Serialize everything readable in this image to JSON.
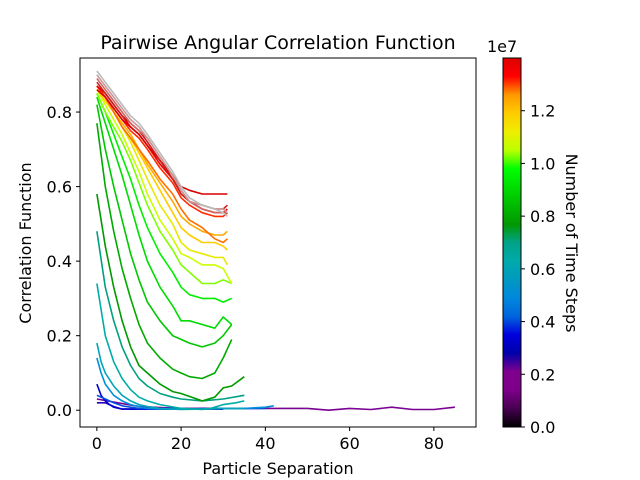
{
  "chart_data": {
    "type": "line",
    "title": "Pairwise Angular Correlation Function",
    "xlabel": "Particle Separation",
    "ylabel": "Correlation Function",
    "xlim": [
      -4,
      90
    ],
    "ylim": [
      -0.045,
      0.945
    ],
    "x_ticks": [
      "0",
      "20",
      "40",
      "60",
      "80"
    ],
    "x_tick_values": [
      0,
      20,
      40,
      60,
      80
    ],
    "y_ticks": [
      "0.0",
      "0.2",
      "0.4",
      "0.6",
      "0.8"
    ],
    "y_tick_values": [
      0.0,
      0.2,
      0.4,
      0.6,
      0.8
    ],
    "grid": false,
    "legend": "none",
    "colorbar": {
      "label": "Number of Time Steps",
      "offset_text": "1e7",
      "min": 0,
      "max": 1.4,
      "ticks": [
        "0.0",
        "0.2",
        "0.4",
        "0.6",
        "0.8",
        "1.0",
        "1.2"
      ],
      "tick_values": [
        0.0,
        0.2,
        0.4,
        0.6,
        0.8,
        1.0,
        1.2
      ],
      "colormap": "nipy_spectral",
      "colormap_stops": [
        [
          "0.00",
          "#000000"
        ],
        [
          "0.05",
          "#470051"
        ],
        [
          "0.10",
          "#7e0089"
        ],
        [
          "0.15",
          "#7f008f"
        ],
        [
          "0.20",
          "#0000a9"
        ],
        [
          "0.25",
          "#0000dd"
        ],
        [
          "0.30",
          "#0066dd"
        ],
        [
          "0.35",
          "#0088dd"
        ],
        [
          "0.40",
          "#0099c0"
        ],
        [
          "0.45",
          "#00aaaa"
        ],
        [
          "0.50",
          "#00a288"
        ],
        [
          "0.55",
          "#009900"
        ],
        [
          "0.60",
          "#00bb00"
        ],
        [
          "0.65",
          "#00dd00"
        ],
        [
          "0.70",
          "#00ff00"
        ],
        [
          "0.75",
          "#bbff00"
        ],
        [
          "0.80",
          "#eeee00"
        ],
        [
          "0.85",
          "#ffcc00"
        ],
        [
          "0.90",
          "#ff9900"
        ],
        [
          "0.95",
          "#ff0000"
        ],
        [
          "1.00",
          "#dd0000"
        ]
      ]
    },
    "series": [
      {
        "color": "#7a0094",
        "x": [
          0,
          5,
          10,
          20,
          30,
          40,
          50,
          55,
          60,
          65,
          70,
          75,
          80,
          85
        ],
        "values": [
          0.03,
          0.02,
          0.01,
          0.005,
          0.005,
          0.005,
          0.005,
          0.0,
          0.005,
          0.002,
          0.008,
          0.002,
          0.002,
          0.008
        ]
      },
      {
        "color": "#2a00b8",
        "x": [
          0,
          2,
          4,
          6,
          8,
          10,
          15,
          20,
          25,
          30
        ],
        "values": [
          0.02,
          0.02,
          0.01,
          0.003,
          0.003,
          0.003,
          0.003,
          0.003,
          0.005,
          0.003
        ]
      },
      {
        "color": "#0000cc",
        "x": [
          0,
          1,
          2,
          3,
          4,
          6,
          8,
          10,
          15,
          20,
          25,
          30
        ],
        "values": [
          0.07,
          0.04,
          0.025,
          0.015,
          0.008,
          0.003,
          0.003,
          0.003,
          0.003,
          0.003,
          0.003,
          0.003
        ]
      },
      {
        "color": "#0050dd",
        "x": [
          0,
          2,
          4,
          6,
          8,
          10,
          12,
          15,
          20,
          25,
          30,
          35,
          40
        ],
        "values": [
          0.04,
          0.03,
          0.02,
          0.012,
          0.008,
          0.005,
          0.005,
          0.005,
          0.005,
          0.003,
          0.005,
          0.005,
          0.005
        ]
      },
      {
        "color": "#0090dc",
        "x": [
          0,
          1,
          2,
          4,
          6,
          8,
          10,
          12,
          15,
          20,
          25,
          30,
          35,
          40,
          42
        ],
        "values": [
          0.14,
          0.1,
          0.07,
          0.04,
          0.025,
          0.015,
          0.01,
          0.005,
          0.003,
          0.003,
          0.003,
          0.005,
          0.005,
          0.008,
          0.012
        ]
      },
      {
        "color": "#00a6b8",
        "x": [
          0,
          1,
          2,
          4,
          6,
          8,
          10,
          12,
          15,
          20,
          25,
          30,
          35
        ],
        "values": [
          0.18,
          0.13,
          0.1,
          0.065,
          0.04,
          0.025,
          0.015,
          0.01,
          0.005,
          0.002,
          0.003,
          0.005,
          0.005
        ]
      },
      {
        "color": "#00aca6",
        "x": [
          0,
          2,
          4,
          6,
          8,
          10,
          12,
          15,
          20,
          25,
          27,
          30,
          33,
          35
        ],
        "values": [
          0.34,
          0.2,
          0.13,
          0.085,
          0.055,
          0.035,
          0.025,
          0.015,
          0.005,
          0.002,
          0.005,
          0.015,
          0.02,
          0.025
        ]
      },
      {
        "color": "#00a080",
        "x": [
          0,
          2,
          4,
          6,
          8,
          10,
          12,
          15,
          18,
          20,
          25,
          30,
          35
        ],
        "values": [
          0.48,
          0.33,
          0.24,
          0.17,
          0.12,
          0.085,
          0.065,
          0.045,
          0.035,
          0.03,
          0.025,
          0.03,
          0.04
        ]
      },
      {
        "color": "#009900",
        "x": [
          0,
          2,
          4,
          6,
          8,
          10,
          12,
          15,
          18,
          20,
          25,
          28,
          30,
          32,
          35
        ],
        "values": [
          0.58,
          0.44,
          0.33,
          0.24,
          0.17,
          0.12,
          0.1,
          0.07,
          0.05,
          0.045,
          0.025,
          0.035,
          0.06,
          0.065,
          0.09
        ]
      },
      {
        "color": "#00aa00",
        "x": [
          0,
          2,
          4,
          6,
          8,
          10,
          12,
          15,
          18,
          20,
          22,
          25,
          28,
          30,
          32
        ],
        "values": [
          0.77,
          0.6,
          0.48,
          0.38,
          0.3,
          0.23,
          0.18,
          0.14,
          0.11,
          0.1,
          0.09,
          0.085,
          0.1,
          0.14,
          0.19
        ]
      },
      {
        "color": "#00c800",
        "x": [
          0,
          2,
          4,
          6,
          8,
          10,
          12,
          15,
          18,
          20,
          22,
          25,
          28,
          30,
          32
        ],
        "values": [
          0.82,
          0.7,
          0.6,
          0.51,
          0.42,
          0.35,
          0.29,
          0.24,
          0.2,
          0.19,
          0.18,
          0.17,
          0.18,
          0.2,
          0.23
        ]
      },
      {
        "color": "#00dc00",
        "x": [
          0,
          2,
          4,
          6,
          8,
          10,
          12,
          15,
          18,
          20,
          22,
          25,
          28,
          30,
          32
        ],
        "values": [
          0.84,
          0.77,
          0.7,
          0.63,
          0.55,
          0.47,
          0.4,
          0.33,
          0.28,
          0.24,
          0.24,
          0.23,
          0.22,
          0.25,
          0.23
        ]
      },
      {
        "color": "#00f000",
        "x": [
          0,
          2,
          4,
          6,
          8,
          10,
          12,
          15,
          18,
          20,
          22,
          25,
          28,
          30,
          32
        ],
        "values": [
          0.85,
          0.8,
          0.74,
          0.68,
          0.62,
          0.55,
          0.49,
          0.42,
          0.37,
          0.33,
          0.31,
          0.3,
          0.3,
          0.29,
          0.3
        ]
      },
      {
        "color": "#7fff00",
        "x": [
          0,
          2,
          4,
          6,
          8,
          10,
          12,
          15,
          18,
          20,
          22,
          25,
          28,
          30,
          32
        ],
        "values": [
          0.85,
          0.8,
          0.76,
          0.72,
          0.67,
          0.61,
          0.55,
          0.48,
          0.43,
          0.39,
          0.37,
          0.34,
          0.34,
          0.35,
          0.34
        ]
      },
      {
        "color": "#ccff00",
        "x": [
          0,
          2,
          4,
          6,
          8,
          10,
          12,
          15,
          18,
          20,
          22,
          25,
          28,
          30,
          32
        ],
        "values": [
          0.86,
          0.82,
          0.78,
          0.74,
          0.69,
          0.64,
          0.58,
          0.51,
          0.46,
          0.42,
          0.41,
          0.39,
          0.39,
          0.38,
          0.34
        ]
      },
      {
        "color": "#e8e800",
        "x": [
          0,
          2,
          4,
          6,
          8,
          10,
          12,
          15,
          18,
          20,
          22,
          25,
          28,
          30,
          31
        ],
        "values": [
          0.86,
          0.83,
          0.8,
          0.76,
          0.72,
          0.67,
          0.62,
          0.55,
          0.5,
          0.45,
          0.43,
          0.42,
          0.41,
          0.41,
          0.39
        ]
      },
      {
        "color": "#ffcc00",
        "x": [
          0,
          2,
          4,
          6,
          8,
          10,
          12,
          15,
          18,
          20,
          22,
          25,
          28,
          30,
          31
        ],
        "values": [
          0.86,
          0.83,
          0.8,
          0.76,
          0.73,
          0.69,
          0.65,
          0.59,
          0.53,
          0.49,
          0.47,
          0.45,
          0.45,
          0.44,
          0.43
        ]
      },
      {
        "color": "#ffaa00",
        "x": [
          0,
          2,
          4,
          6,
          8,
          10,
          12,
          15,
          18,
          20,
          22,
          25,
          28,
          30,
          31
        ],
        "values": [
          0.87,
          0.84,
          0.8,
          0.77,
          0.74,
          0.7,
          0.66,
          0.61,
          0.56,
          0.52,
          0.5,
          0.48,
          0.47,
          0.47,
          0.48
        ]
      },
      {
        "color": "#ff6e00",
        "x": [
          0,
          2,
          4,
          6,
          8,
          10,
          12,
          15,
          18,
          20,
          22,
          25,
          28,
          30,
          31
        ],
        "values": [
          0.87,
          0.84,
          0.8,
          0.76,
          0.73,
          0.7,
          0.67,
          0.62,
          0.58,
          0.54,
          0.51,
          0.49,
          0.46,
          0.45,
          0.46
        ]
      },
      {
        "color": "#ff2a00",
        "x": [
          0,
          2,
          4,
          6,
          8,
          10,
          12,
          15,
          18,
          20,
          22,
          25,
          28,
          30,
          31
        ],
        "values": [
          0.87,
          0.84,
          0.81,
          0.78,
          0.75,
          0.73,
          0.7,
          0.65,
          0.61,
          0.57,
          0.55,
          0.53,
          0.52,
          0.52,
          0.53
        ]
      },
      {
        "color": "#f00000",
        "x": [
          0,
          2,
          4,
          6,
          8,
          10,
          12,
          15,
          18,
          20,
          22,
          25,
          28,
          30,
          31
        ],
        "values": [
          0.87,
          0.85,
          0.82,
          0.79,
          0.76,
          0.74,
          0.71,
          0.66,
          0.62,
          0.59,
          0.56,
          0.54,
          0.53,
          0.53,
          0.54
        ]
      },
      {
        "color": "#d80000",
        "x": [
          0,
          2,
          4,
          6,
          8,
          10,
          12,
          15,
          18,
          20,
          22,
          25,
          28,
          30,
          31
        ],
        "values": [
          0.86,
          0.84,
          0.81,
          0.78,
          0.76,
          0.74,
          0.71,
          0.67,
          0.63,
          0.6,
          0.59,
          0.58,
          0.58,
          0.58,
          0.58
        ]
      },
      {
        "color": "#c81e1e",
        "x": [
          0,
          2,
          4,
          6,
          8,
          10,
          12,
          15,
          18,
          20,
          22,
          25,
          28,
          30,
          31
        ],
        "values": [
          0.88,
          0.85,
          0.82,
          0.79,
          0.77,
          0.75,
          0.72,
          0.67,
          0.62,
          0.58,
          0.56,
          0.55,
          0.54,
          0.54,
          0.55
        ]
      },
      {
        "color": "#cc6666",
        "x": [
          0,
          2,
          4,
          6,
          8,
          10,
          12,
          15,
          18,
          20,
          22,
          25,
          28,
          30,
          31
        ],
        "values": [
          0.89,
          0.86,
          0.83,
          0.8,
          0.77,
          0.75,
          0.73,
          0.68,
          0.63,
          0.59,
          0.56,
          0.54,
          0.53,
          0.53,
          0.53
        ]
      },
      {
        "color": "#cc9999",
        "x": [
          0,
          2,
          4,
          6,
          8,
          10,
          12,
          15,
          18,
          20,
          22,
          25,
          28,
          30,
          31
        ],
        "values": [
          0.9,
          0.87,
          0.84,
          0.81,
          0.78,
          0.76,
          0.73,
          0.68,
          0.63,
          0.59,
          0.56,
          0.55,
          0.54,
          0.54,
          0.53
        ]
      },
      {
        "color": "#bbbbbb",
        "x": [
          0,
          2,
          4,
          6,
          8,
          10,
          12,
          15,
          18,
          20,
          22,
          25,
          28,
          30,
          31
        ],
        "values": [
          0.91,
          0.88,
          0.85,
          0.82,
          0.79,
          0.77,
          0.74,
          0.69,
          0.64,
          0.6,
          0.57,
          0.55,
          0.54,
          0.53,
          0.52
        ]
      }
    ]
  }
}
